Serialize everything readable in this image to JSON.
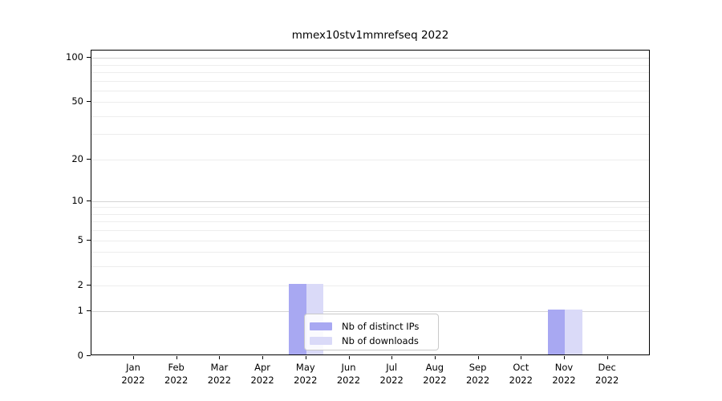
{
  "chart_data": {
    "type": "bar",
    "title": "mmex10stv1mmrefseq 2022",
    "categories": [
      "Jan 2022",
      "Feb 2022",
      "Mar 2022",
      "Apr 2022",
      "May 2022",
      "Jun 2022",
      "Jul 2022",
      "Aug 2022",
      "Sep 2022",
      "Oct 2022",
      "Nov 2022",
      "Dec 2022"
    ],
    "series": [
      {
        "name": "Nb of distinct IPs",
        "color": "#a8a8f2",
        "values": [
          0,
          0,
          0,
          0,
          2,
          0,
          0,
          0,
          0,
          0,
          1,
          0
        ]
      },
      {
        "name": "Nb of downloads",
        "color": "#dadaf8",
        "values": [
          0,
          0,
          0,
          0,
          2,
          0,
          0,
          0,
          0,
          0,
          1,
          0
        ]
      }
    ],
    "xlabel": "",
    "ylabel": "",
    "yscale": "log1p",
    "ylim": [
      0,
      112
    ],
    "yticks": [
      0,
      1,
      2,
      5,
      10,
      20,
      50,
      100
    ],
    "major_gridlines": [
      1,
      10,
      100
    ],
    "minor_gridlines": [
      2,
      3,
      4,
      5,
      6,
      7,
      8,
      9,
      20,
      30,
      40,
      50,
      60,
      70,
      80,
      90
    ],
    "grid": true,
    "legend": {
      "position": "lower center",
      "items": [
        "Nb of distinct IPs",
        "Nb of downloads"
      ]
    }
  },
  "colors": {
    "bar_distinct_ips": "#a8a8f2",
    "bar_downloads": "#dadaf8",
    "major_grid": "#d5d5d5",
    "minor_grid": "#ededed",
    "spine": "#000000"
  }
}
